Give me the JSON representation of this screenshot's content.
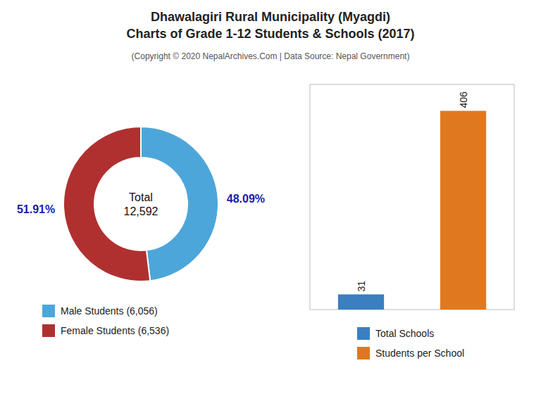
{
  "title": "Dhawalagiri Rural Municipality (Myagdi)\nCharts of Grade 1-12 Students & Schools (2017)",
  "subtitle": "(Copyright © 2020 NepalArchives.Com | Data Source: Nepal Government)",
  "chart_data": [
    {
      "type": "donut",
      "categories": [
        "Male Students (6,056)",
        "Female Students (6,536)"
      ],
      "values": [
        48.09,
        51.91
      ],
      "value_labels": [
        "48.09%",
        "51.91%"
      ],
      "colors": [
        "#4da6d9",
        "#b03030"
      ],
      "annotations": [
        "Total\n12,592"
      ],
      "data_labels": true,
      "legend": "bottom"
    },
    {
      "type": "bar",
      "categories": [
        "Total Schools",
        "Students per School"
      ],
      "values": [
        31,
        406
      ],
      "colors": [
        "#3a7fbf",
        "#e07820"
      ],
      "ylim": [
        0,
        460
      ],
      "data_labels": true,
      "tick_labels": false,
      "legend": "bottom"
    }
  ]
}
